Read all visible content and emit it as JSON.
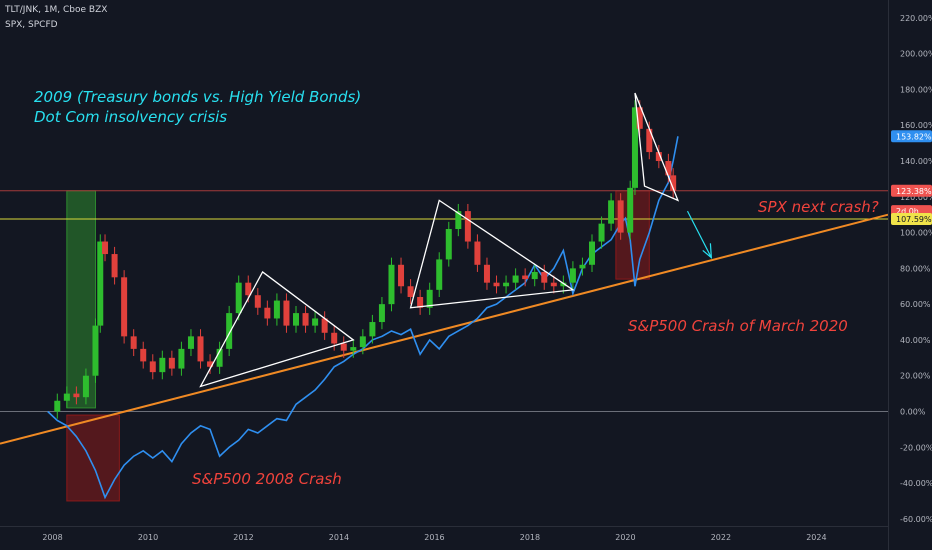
{
  "header": {
    "line1": "TLT/JNK, 1M, Cboe BZX",
    "line2": "SPX, SPCFD"
  },
  "annotations": {
    "title_line1": "2009 (Treasury bonds vs. High Yield Bonds)",
    "title_line2": "Dot Com insolvency crisis",
    "spx_next": "SPX next crash?",
    "crash_2020": "S&P500 Crash of March 2020",
    "crash_2008": "S&P500 2008 Crash"
  },
  "colors": {
    "background": "#131722",
    "up": "#26a69a",
    "candle_up": "#2ebd2e",
    "candle_down": "#e0413c",
    "spx_line": "#2f8ff0",
    "trend_line": "#f08a24",
    "level_red": "#ef5350",
    "level_yellow": "#d8d83a",
    "annotation_cyan": "#28e0f0",
    "annotation_red": "#f0433c",
    "zone_green": "#2e8b2e",
    "zone_red": "#8b1a1a"
  },
  "chart_data": {
    "type": "candlestick",
    "x_unit": "year",
    "y_unit": "percent change",
    "ylim": [
      -64,
      230
    ],
    "xlim": [
      2006.9,
      2025.5
    ],
    "y_ticks": [
      "220.00%",
      "200.00%",
      "180.00%",
      "160.00%",
      "140.00%",
      "120.00%",
      "100.00%",
      "80.00%",
      "60.00%",
      "40.00%",
      "20.00%",
      "0.00%",
      "-20.00%",
      "-40.00%",
      "-60.00%"
    ],
    "y_tick_values": [
      220,
      200,
      180,
      160,
      140,
      120,
      100,
      80,
      60,
      40,
      20,
      0,
      -20,
      -40,
      -60
    ],
    "x_ticks": [
      "2008",
      "2010",
      "2012",
      "2014",
      "2016",
      "2018",
      "2020",
      "2022",
      "2024"
    ],
    "x_tick_values": [
      2008,
      2010,
      2012,
      2014,
      2016,
      2018,
      2020,
      2022,
      2024
    ],
    "price_labels": [
      {
        "text": "153.82%",
        "value": 153.82,
        "color": "#2f8ff0"
      },
      {
        "text": "123.38%",
        "value": 123.38,
        "color": "#ef5350"
      },
      {
        "text": "2d 0h",
        "value": 112,
        "color": "#ef5350"
      },
      {
        "text": "107.59%",
        "value": 107.59,
        "color": "#f0e34a"
      }
    ],
    "horizontal_levels": [
      {
        "value": 123.38,
        "color": "#a33a3a"
      },
      {
        "value": 107.59,
        "color": "#d8d83a"
      },
      {
        "value": 0,
        "color": "#6b6f79"
      }
    ],
    "series": [
      {
        "name": "TLT/JNK",
        "kind": "candles",
        "points": [
          [
            2007.9,
            0
          ],
          [
            2008.1,
            6
          ],
          [
            2008.3,
            10
          ],
          [
            2008.5,
            8
          ],
          [
            2008.7,
            20
          ],
          [
            2008.9,
            48
          ],
          [
            2009.0,
            95
          ],
          [
            2009.1,
            88
          ],
          [
            2009.3,
            75
          ],
          [
            2009.5,
            42
          ],
          [
            2009.7,
            35
          ],
          [
            2009.9,
            28
          ],
          [
            2010.1,
            22
          ],
          [
            2010.3,
            30
          ],
          [
            2010.5,
            24
          ],
          [
            2010.7,
            35
          ],
          [
            2010.9,
            42
          ],
          [
            2011.1,
            28
          ],
          [
            2011.3,
            25
          ],
          [
            2011.5,
            35
          ],
          [
            2011.7,
            55
          ],
          [
            2011.9,
            72
          ],
          [
            2012.1,
            65
          ],
          [
            2012.3,
            58
          ],
          [
            2012.5,
            52
          ],
          [
            2012.7,
            62
          ],
          [
            2012.9,
            48
          ],
          [
            2013.1,
            55
          ],
          [
            2013.3,
            48
          ],
          [
            2013.5,
            52
          ],
          [
            2013.7,
            44
          ],
          [
            2013.9,
            38
          ],
          [
            2014.1,
            34
          ],
          [
            2014.3,
            36
          ],
          [
            2014.5,
            42
          ],
          [
            2014.7,
            50
          ],
          [
            2014.9,
            60
          ],
          [
            2015.1,
            82
          ],
          [
            2015.3,
            70
          ],
          [
            2015.5,
            64
          ],
          [
            2015.7,
            58
          ],
          [
            2015.9,
            68
          ],
          [
            2016.1,
            85
          ],
          [
            2016.3,
            102
          ],
          [
            2016.5,
            112
          ],
          [
            2016.7,
            95
          ],
          [
            2016.9,
            82
          ],
          [
            2017.1,
            72
          ],
          [
            2017.3,
            70
          ],
          [
            2017.5,
            72
          ],
          [
            2017.7,
            76
          ],
          [
            2017.9,
            74
          ],
          [
            2018.1,
            78
          ],
          [
            2018.3,
            72
          ],
          [
            2018.5,
            70
          ],
          [
            2018.7,
            72
          ],
          [
            2018.9,
            80
          ],
          [
            2019.1,
            82
          ],
          [
            2019.3,
            95
          ],
          [
            2019.5,
            105
          ],
          [
            2019.7,
            118
          ],
          [
            2019.9,
            100
          ],
          [
            2020.1,
            125
          ],
          [
            2020.2,
            170
          ],
          [
            2020.3,
            158
          ],
          [
            2020.5,
            145
          ],
          [
            2020.7,
            140
          ],
          [
            2020.9,
            132
          ],
          [
            2021.0,
            123.38
          ]
        ]
      },
      {
        "name": "SPX",
        "kind": "line",
        "points": [
          [
            2007.9,
            0
          ],
          [
            2008.1,
            -5
          ],
          [
            2008.3,
            -8
          ],
          [
            2008.5,
            -14
          ],
          [
            2008.7,
            -22
          ],
          [
            2008.9,
            -33
          ],
          [
            2009.1,
            -48
          ],
          [
            2009.3,
            -38
          ],
          [
            2009.5,
            -30
          ],
          [
            2009.7,
            -25
          ],
          [
            2009.9,
            -22
          ],
          [
            2010.1,
            -26
          ],
          [
            2010.3,
            -22
          ],
          [
            2010.5,
            -28
          ],
          [
            2010.7,
            -18
          ],
          [
            2010.9,
            -12
          ],
          [
            2011.1,
            -8
          ],
          [
            2011.3,
            -10
          ],
          [
            2011.5,
            -25
          ],
          [
            2011.7,
            -20
          ],
          [
            2011.9,
            -16
          ],
          [
            2012.1,
            -10
          ],
          [
            2012.3,
            -12
          ],
          [
            2012.5,
            -8
          ],
          [
            2012.7,
            -4
          ],
          [
            2012.9,
            -5
          ],
          [
            2013.1,
            4
          ],
          [
            2013.3,
            8
          ],
          [
            2013.5,
            12
          ],
          [
            2013.7,
            18
          ],
          [
            2013.9,
            25
          ],
          [
            2014.1,
            28
          ],
          [
            2014.3,
            32
          ],
          [
            2014.5,
            35
          ],
          [
            2014.7,
            40
          ],
          [
            2014.9,
            42
          ],
          [
            2015.1,
            45
          ],
          [
            2015.3,
            43
          ],
          [
            2015.5,
            46
          ],
          [
            2015.7,
            32
          ],
          [
            2015.9,
            40
          ],
          [
            2016.1,
            35
          ],
          [
            2016.3,
            42
          ],
          [
            2016.5,
            45
          ],
          [
            2016.7,
            48
          ],
          [
            2016.9,
            52
          ],
          [
            2017.1,
            58
          ],
          [
            2017.3,
            60
          ],
          [
            2017.5,
            64
          ],
          [
            2017.7,
            68
          ],
          [
            2017.9,
            72
          ],
          [
            2018.1,
            82
          ],
          [
            2018.3,
            74
          ],
          [
            2018.5,
            80
          ],
          [
            2018.7,
            90
          ],
          [
            2018.9,
            66
          ],
          [
            2019.1,
            80
          ],
          [
            2019.3,
            88
          ],
          [
            2019.5,
            92
          ],
          [
            2019.7,
            96
          ],
          [
            2019.9,
            105
          ],
          [
            2020.0,
            108
          ],
          [
            2020.1,
            96
          ],
          [
            2020.2,
            70
          ],
          [
            2020.3,
            85
          ],
          [
            2020.5,
            100
          ],
          [
            2020.7,
            118
          ],
          [
            2020.9,
            128
          ],
          [
            2021.0,
            140
          ],
          [
            2021.1,
            153.82
          ]
        ]
      }
    ],
    "trend_line": {
      "from": [
        2006.9,
        -18
      ],
      "to": [
        2025.5,
        110
      ]
    },
    "triangles": [
      [
        [
          2012.4,
          78
        ],
        [
          2014.3,
          40
        ],
        [
          2011.1,
          14
        ]
      ],
      [
        [
          2016.1,
          118
        ],
        [
          2018.9,
          68
        ],
        [
          2015.5,
          58
        ]
      ],
      [
        [
          2020.2,
          178
        ],
        [
          2021.1,
          118
        ],
        [
          2020.4,
          126
        ]
      ]
    ],
    "zones": [
      {
        "x": [
          2008.3,
          2008.9
        ],
        "y": [
          2,
          123.38
        ],
        "kind": "green"
      },
      {
        "x": [
          2008.3,
          2009.4
        ],
        "y": [
          -50,
          -2
        ],
        "kind": "red"
      },
      {
        "x": [
          2019.8,
          2020.5
        ],
        "y": [
          74,
          123.38
        ],
        "kind": "red"
      }
    ]
  }
}
